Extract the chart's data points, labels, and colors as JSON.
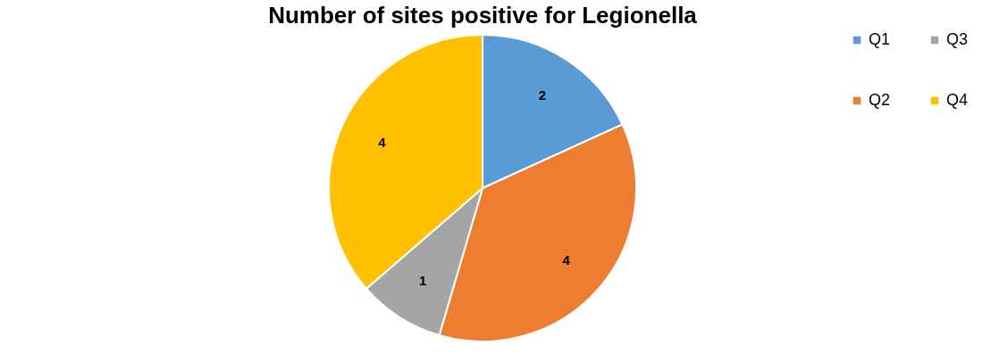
{
  "chart_data": {
    "type": "pie",
    "title": "Number of sites positive for Legionella",
    "categories": [
      "Q1",
      "Q2",
      "Q3",
      "Q4"
    ],
    "values": [
      2,
      4,
      1,
      4
    ],
    "colors": [
      "#5b9bd5",
      "#ed7d31",
      "#a5a5a5",
      "#ffc000"
    ],
    "data_labels": true,
    "legend": "right"
  }
}
